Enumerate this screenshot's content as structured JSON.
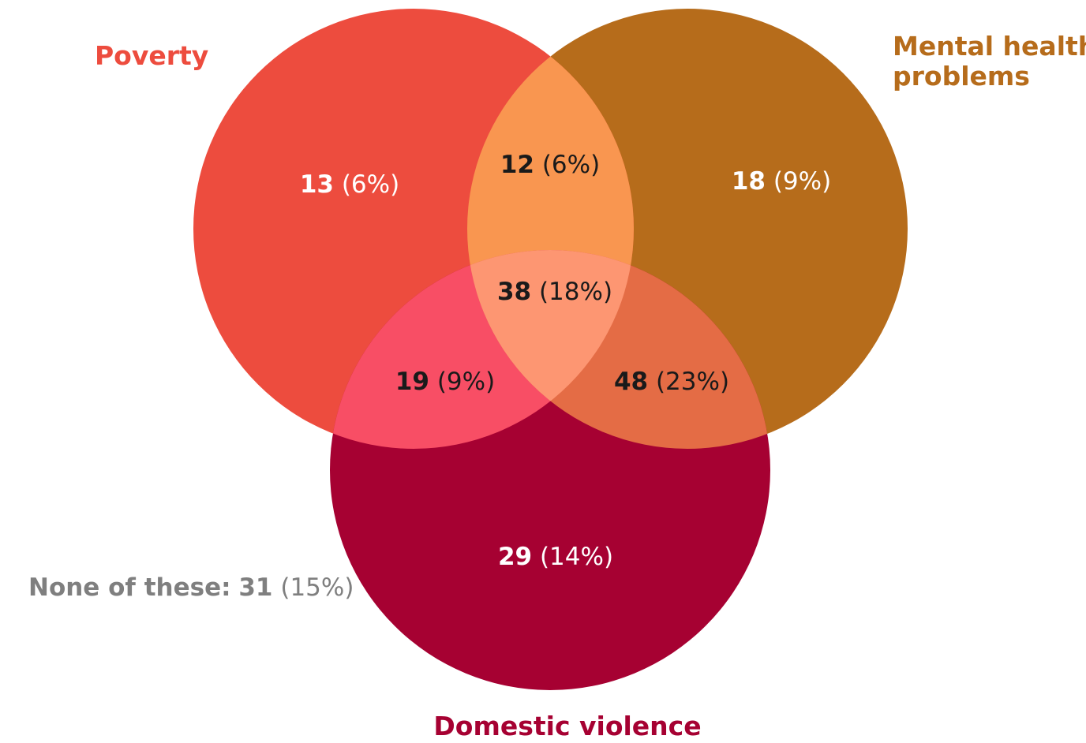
{
  "colors": {
    "poverty": "#ed4c3e",
    "mental_health": "#b66c1b",
    "domestic_violence": "#a60132",
    "poverty_mental_health": "#f99650",
    "poverty_domestic_violence": "#f84e65",
    "mental_health_domestic_violence": "#e46c45",
    "all_three": "#fd9672",
    "none_text": "#7f7f7f",
    "dark_text": "#1a1a1a",
    "light_text": "#ffffff"
  },
  "labels": {
    "poverty": "Poverty",
    "mental_health": [
      "Mental health",
      "problems"
    ],
    "domestic_violence": "Domestic violence",
    "none": "None of these:"
  },
  "regions": {
    "poverty_only": {
      "num": "13",
      "pct": "(6%)"
    },
    "mental_health_only": {
      "num": "18",
      "pct": "(9%)"
    },
    "domestic_violence_only": {
      "num": "29",
      "pct": "(14%)"
    },
    "poverty_mental_health": {
      "num": "12",
      "pct": "(6%)"
    },
    "poverty_domestic_violence": {
      "num": "19",
      "pct": "(9%)"
    },
    "mental_health_domestic_violence": {
      "num": "48",
      "pct": "(23%)"
    },
    "all_three": {
      "num": "38",
      "pct": "(18%)"
    },
    "none": {
      "num": "31",
      "pct": "(15%)"
    }
  }
}
